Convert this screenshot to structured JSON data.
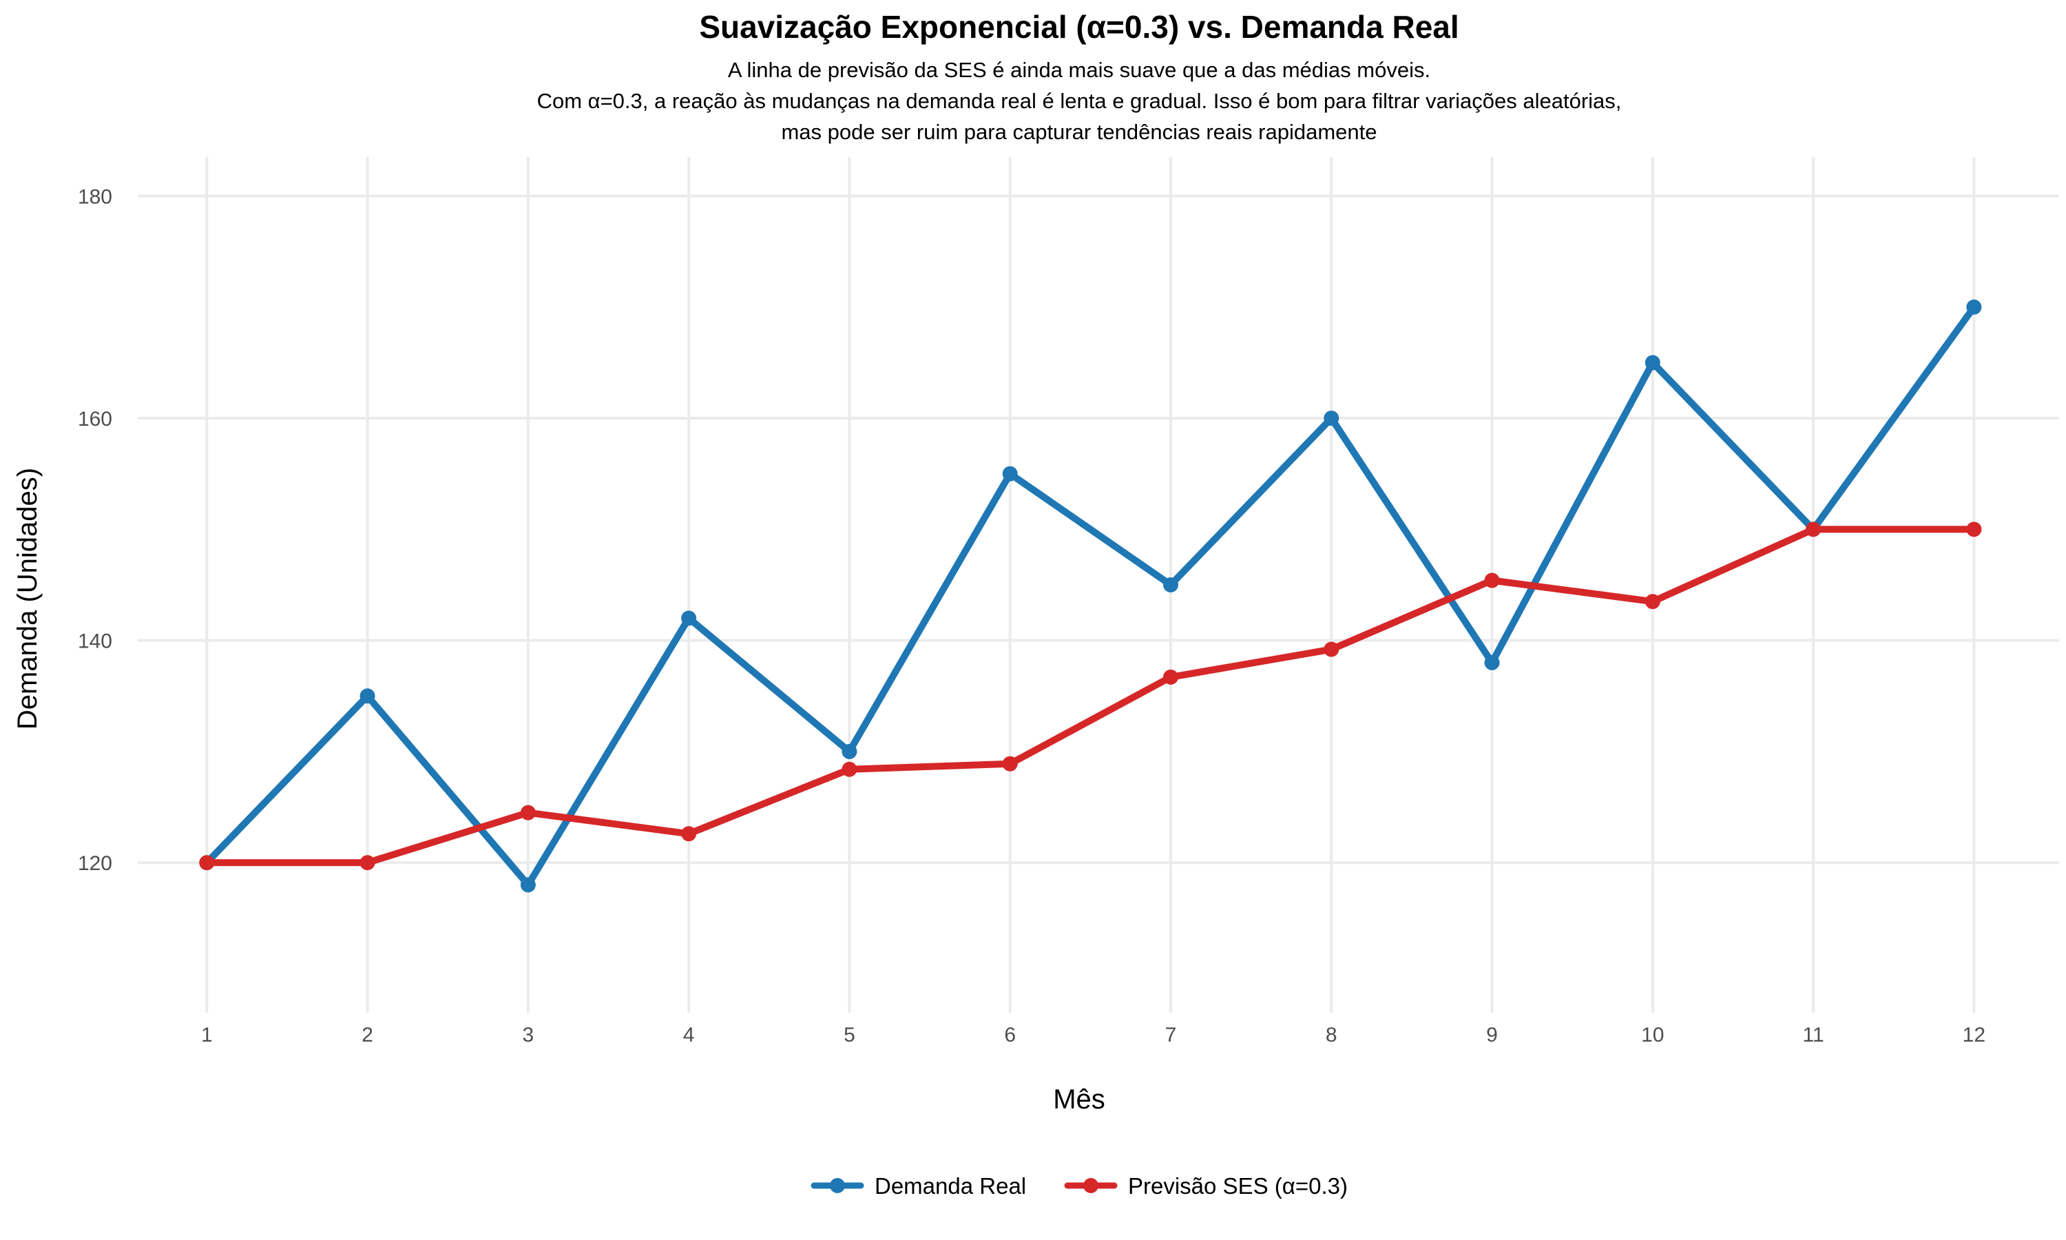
{
  "chart_data": {
    "type": "line",
    "title": "Suavização Exponencial (α=0.3) vs. Demanda Real",
    "subtitle": [
      "A linha de previsão da SES é ainda mais suave que a das médias móveis.",
      "Com α=0.3, a reação às mudanças na demanda real é lenta e gradual. Isso é bom para filtrar variações aleatórias,",
      "mas pode ser ruim para capturar tendências reais rapidamente"
    ],
    "xlabel": "Mês",
    "ylabel": "Demanda (Unidades)",
    "x": [
      1,
      2,
      3,
      4,
      5,
      6,
      7,
      8,
      9,
      10,
      11,
      12
    ],
    "x_tick_labels": [
      "1",
      "2",
      "3",
      "4",
      "5",
      "6",
      "7",
      "8",
      "9",
      "10",
      "11",
      "12"
    ],
    "xlim": [
      0.57,
      12.53
    ],
    "ylim": [
      106.5,
      183.5
    ],
    "y_ticks": [
      120,
      140,
      160,
      180
    ],
    "grid": true,
    "legend_position": "bottom",
    "series": [
      {
        "name": "Demanda Real",
        "color": "#1f77b4",
        "values": [
          120,
          135,
          118,
          142,
          130,
          155,
          145,
          160,
          138,
          165,
          150,
          170
        ]
      },
      {
        "name": "Previsão SES (α=0.3)",
        "color": "#d62728",
        "values": [
          120,
          120,
          124.5,
          122.6,
          128.4,
          128.9,
          136.7,
          139.2,
          145.4,
          143.5,
          150,
          150
        ]
      }
    ]
  }
}
